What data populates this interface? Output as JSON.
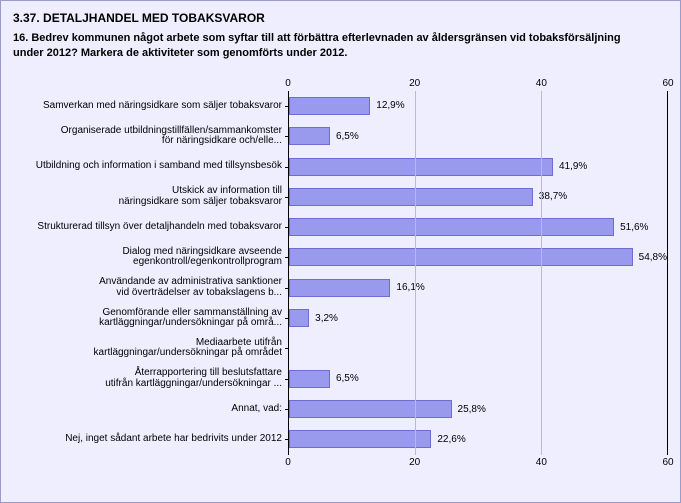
{
  "colors": {
    "panel_bg": "#eeeeff",
    "panel_border": "#9a9acc",
    "text": "#000000",
    "grid": "#b9b9d8",
    "bar_fill": "#9999ee",
    "bar_border": "#6e6ed0"
  },
  "section_title": "3.37. DETALJHANDEL MED TOBAKSVAROR",
  "question": "16. Bedrev kommunen något arbete som syftar till att förbättra efterlevnaden av åldersgränsen vid tobaksförsäljning under 2012? Markera de aktiviteter som genomförts under 2012.",
  "chart": {
    "type": "bar",
    "orientation": "horizontal",
    "xlim": [
      0,
      60
    ],
    "ticks": [
      0,
      20,
      40,
      60
    ],
    "label_fontsize": 10,
    "value_label_fontsize": 10,
    "items": [
      {
        "label_lines": [
          "Samverkan med näringsidkare som säljer tobaksvaror"
        ],
        "value": 12.9,
        "display": "12,9%"
      },
      {
        "label_lines": [
          "Organiserade utbildningstillfällen/sammankomster",
          "för näringsidkare och/elle..."
        ],
        "value": 6.5,
        "display": "6,5%"
      },
      {
        "label_lines": [
          "Utbildning och information i samband med tillsynsbesök"
        ],
        "value": 41.9,
        "display": "41,9%"
      },
      {
        "label_lines": [
          "Utskick av information till",
          "näringsidkare som säljer tobaksvaror"
        ],
        "value": 38.7,
        "display": "38,7%"
      },
      {
        "label_lines": [
          "Strukturerad tillsyn över detaljhandeln med tobaksvaror"
        ],
        "value": 51.6,
        "display": "51,6%"
      },
      {
        "label_lines": [
          "Dialog med näringsidkare avseende",
          "egenkontroll/egenkontrollprogram"
        ],
        "value": 54.8,
        "display": "54,8%"
      },
      {
        "label_lines": [
          "Användande av administrativa sanktioner",
          "vid överträdelser av tobakslagens b..."
        ],
        "value": 16.1,
        "display": "16,1%"
      },
      {
        "label_lines": [
          "Genomförande eller sammanställning av",
          "kartläggningar/undersökningar på områ..."
        ],
        "value": 3.2,
        "display": "3,2%"
      },
      {
        "label_lines": [
          "Mediaarbete utifrån",
          "kartläggningar/undersökningar på området"
        ],
        "value": 0,
        "display": ""
      },
      {
        "label_lines": [
          "Återrapportering till beslutsfattare",
          "utifrån kartläggningar/undersökningar ..."
        ],
        "value": 6.5,
        "display": "6,5%"
      },
      {
        "label_lines": [
          "Annat, vad:"
        ],
        "value": 25.8,
        "display": "25,8%"
      },
      {
        "label_lines": [
          "Nej, inget sådant arbete har bedrivits under 2012"
        ],
        "value": 22.6,
        "display": "22,6%"
      }
    ]
  }
}
